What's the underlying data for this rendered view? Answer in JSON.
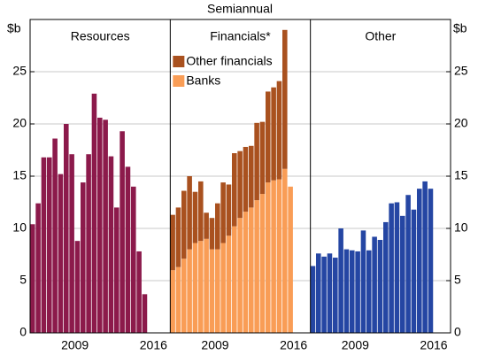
{
  "title": "Semiannual",
  "ylabel": "$b",
  "chart_data": [
    {
      "type": "bar",
      "title": "Resources",
      "color": "#8c1a4b",
      "x": [
        2005.5,
        2006,
        2006.5,
        2007,
        2007.5,
        2008,
        2008.5,
        2009,
        2009.5,
        2010,
        2010.5,
        2011,
        2011.5,
        2012,
        2012.5,
        2013,
        2013.5,
        2014,
        2014.5,
        2015,
        2015.5
      ],
      "values": [
        10.4,
        12.4,
        16.8,
        16.8,
        18.6,
        15.2,
        20.0,
        17.1,
        8.8,
        14.4,
        17.1,
        22.9,
        20.6,
        20.4,
        16.9,
        12.0,
        19.3,
        15.9,
        14.0,
        7.8,
        3.7
      ],
      "xlim": [
        2005.5,
        2018
      ],
      "xticks": [
        {
          "value": 2009.5,
          "label": "2009"
        },
        {
          "value": 2016.5,
          "label": "2016"
        }
      ],
      "ylim": [
        0,
        30
      ],
      "yticks": [
        0,
        5,
        10,
        15,
        20,
        25
      ],
      "grid": true
    },
    {
      "type": "stacked_bar",
      "title": "Financials*",
      "x": [
        2005.5,
        2006,
        2006.5,
        2007,
        2007.5,
        2008,
        2008.5,
        2009,
        2009.5,
        2010,
        2010.5,
        2011,
        2011.5,
        2012,
        2012.5,
        2013,
        2013.5,
        2014,
        2014.5,
        2015,
        2015.5,
        2016
      ],
      "series": [
        {
          "name": "Other financials",
          "color": "#a9511f",
          "values": [
            5.3,
            5.7,
            6.5,
            7.0,
            4.9,
            5.7,
            2.5,
            3.0,
            4.4,
            5.8,
            4.9,
            7.0,
            6.4,
            6.2,
            5.9,
            7.4,
            6.9,
            8.7,
            8.9,
            9.4,
            13.3,
            null
          ]
        },
        {
          "name": "Banks",
          "color": "#f99d56",
          "values": [
            6.0,
            6.3,
            7.1,
            8.0,
            8.6,
            8.8,
            9.0,
            8.0,
            8.0,
            8.6,
            9.3,
            10.2,
            11.0,
            11.6,
            12.0,
            12.7,
            13.3,
            14.4,
            14.6,
            14.7,
            15.7,
            14.0
          ]
        }
      ],
      "xlim": [
        2005.5,
        2018
      ],
      "xticks": [
        {
          "value": 2009.5,
          "label": "2009"
        },
        {
          "value": 2016.5,
          "label": "2016"
        }
      ],
      "ylim": [
        0,
        30
      ],
      "yticks": [
        0,
        5,
        10,
        15,
        20,
        25
      ],
      "grid": true,
      "legend": "top-left"
    },
    {
      "type": "bar",
      "title": "Other",
      "color": "#2546a3",
      "x": [
        2005.5,
        2006,
        2006.5,
        2007,
        2007.5,
        2008,
        2008.5,
        2009,
        2009.5,
        2010,
        2010.5,
        2011,
        2011.5,
        2012,
        2012.5,
        2013,
        2013.5,
        2014,
        2014.5,
        2015,
        2015.5,
        2016
      ],
      "values": [
        6.4,
        7.6,
        7.3,
        7.6,
        7.2,
        10.0,
        8.0,
        7.9,
        7.8,
        9.8,
        7.9,
        9.2,
        8.9,
        10.6,
        12.4,
        12.5,
        11.2,
        13.2,
        11.8,
        13.8,
        14.5,
        13.8
      ],
      "xlim": [
        2005.5,
        2018
      ],
      "xticks": [
        {
          "value": 2009.5,
          "label": "2009"
        },
        {
          "value": 2016.5,
          "label": "2016"
        }
      ],
      "ylim": [
        0,
        30
      ],
      "yticks": [
        0,
        5,
        10,
        15,
        20,
        25
      ],
      "grid": true
    }
  ]
}
